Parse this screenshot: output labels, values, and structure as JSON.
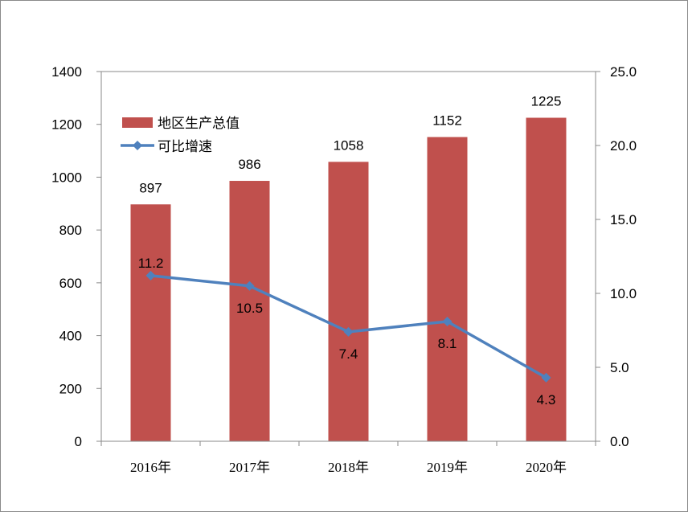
{
  "chart_data": {
    "type": "bar",
    "categories": [
      "2016年",
      "2017年",
      "2018年",
      "2019年",
      "2020年"
    ],
    "series": [
      {
        "name": "地区生产总值",
        "type": "bar",
        "axis": "left",
        "color": "#c0504d",
        "values": [
          897,
          986,
          1058,
          1152,
          1225
        ],
        "labels": [
          "897",
          "986",
          "1058",
          "1152",
          "1225"
        ]
      },
      {
        "name": "可比增速",
        "type": "line",
        "axis": "right",
        "color": "#4f81bd",
        "marker": "diamond",
        "values": [
          11.2,
          10.5,
          7.4,
          8.1,
          4.3
        ],
        "labels": [
          "11.2",
          "10.5",
          "7.4",
          "8.1",
          "4.3"
        ]
      }
    ],
    "left_axis": {
      "ylim": [
        0,
        1400
      ],
      "ticks": [
        "0",
        "200",
        "400",
        "600",
        "800",
        "1000",
        "1200",
        "1400"
      ]
    },
    "right_axis": {
      "ylim": [
        0,
        25
      ],
      "ticks": [
        "0.0",
        "5.0",
        "10.0",
        "15.0",
        "20.0",
        "25.0"
      ]
    },
    "grid": false,
    "legend_position": "top-left"
  }
}
